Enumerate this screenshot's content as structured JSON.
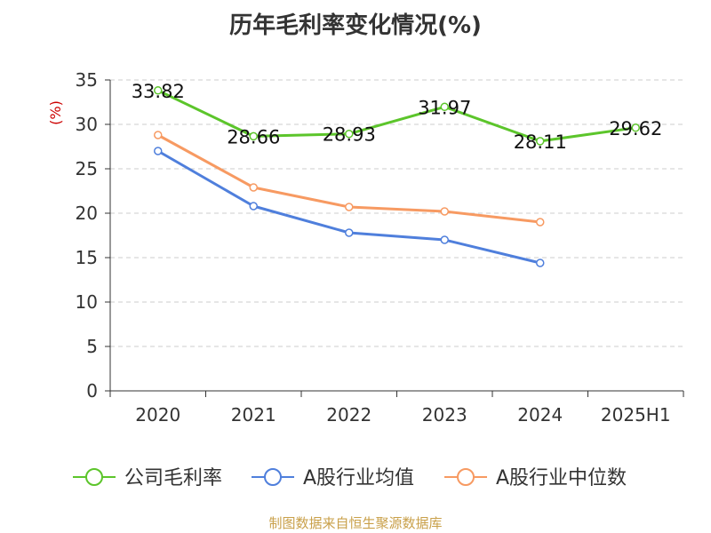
{
  "chart_data": {
    "type": "line",
    "title": "历年毛利率变化情况(%)",
    "ylabel": "(%)",
    "xlabel": "",
    "categories": [
      "2020",
      "2021",
      "2022",
      "2023",
      "2024",
      "2025H1"
    ],
    "ylim": [
      0,
      35
    ],
    "yticks": [
      0,
      5,
      10,
      15,
      20,
      25,
      30,
      35
    ],
    "grid": "horizontal-dashed",
    "legend_position": "bottom",
    "series": [
      {
        "name": "公司毛利率",
        "color": "#5cc52b",
        "show_labels": true,
        "values": [
          33.82,
          28.66,
          28.93,
          31.97,
          28.11,
          29.62
        ],
        "labels": [
          "33.82",
          "28.66",
          "28.93",
          "31.97",
          "28.11",
          "29.62"
        ]
      },
      {
        "name": "A股行业均值",
        "color": "#4f7fdc",
        "show_labels": false,
        "values": [
          27.0,
          20.8,
          17.8,
          17.0,
          14.4,
          null
        ]
      },
      {
        "name": "A股行业中位数",
        "color": "#f79a62",
        "show_labels": false,
        "values": [
          28.8,
          22.9,
          20.7,
          20.2,
          19.0,
          null
        ]
      }
    ]
  },
  "source_text": "制图数据来自恒生聚源数据库",
  "colors": {
    "axis": "#333333",
    "grid": "#cccccc",
    "ylabel": "#cc0000",
    "source": "#c9a04a"
  }
}
